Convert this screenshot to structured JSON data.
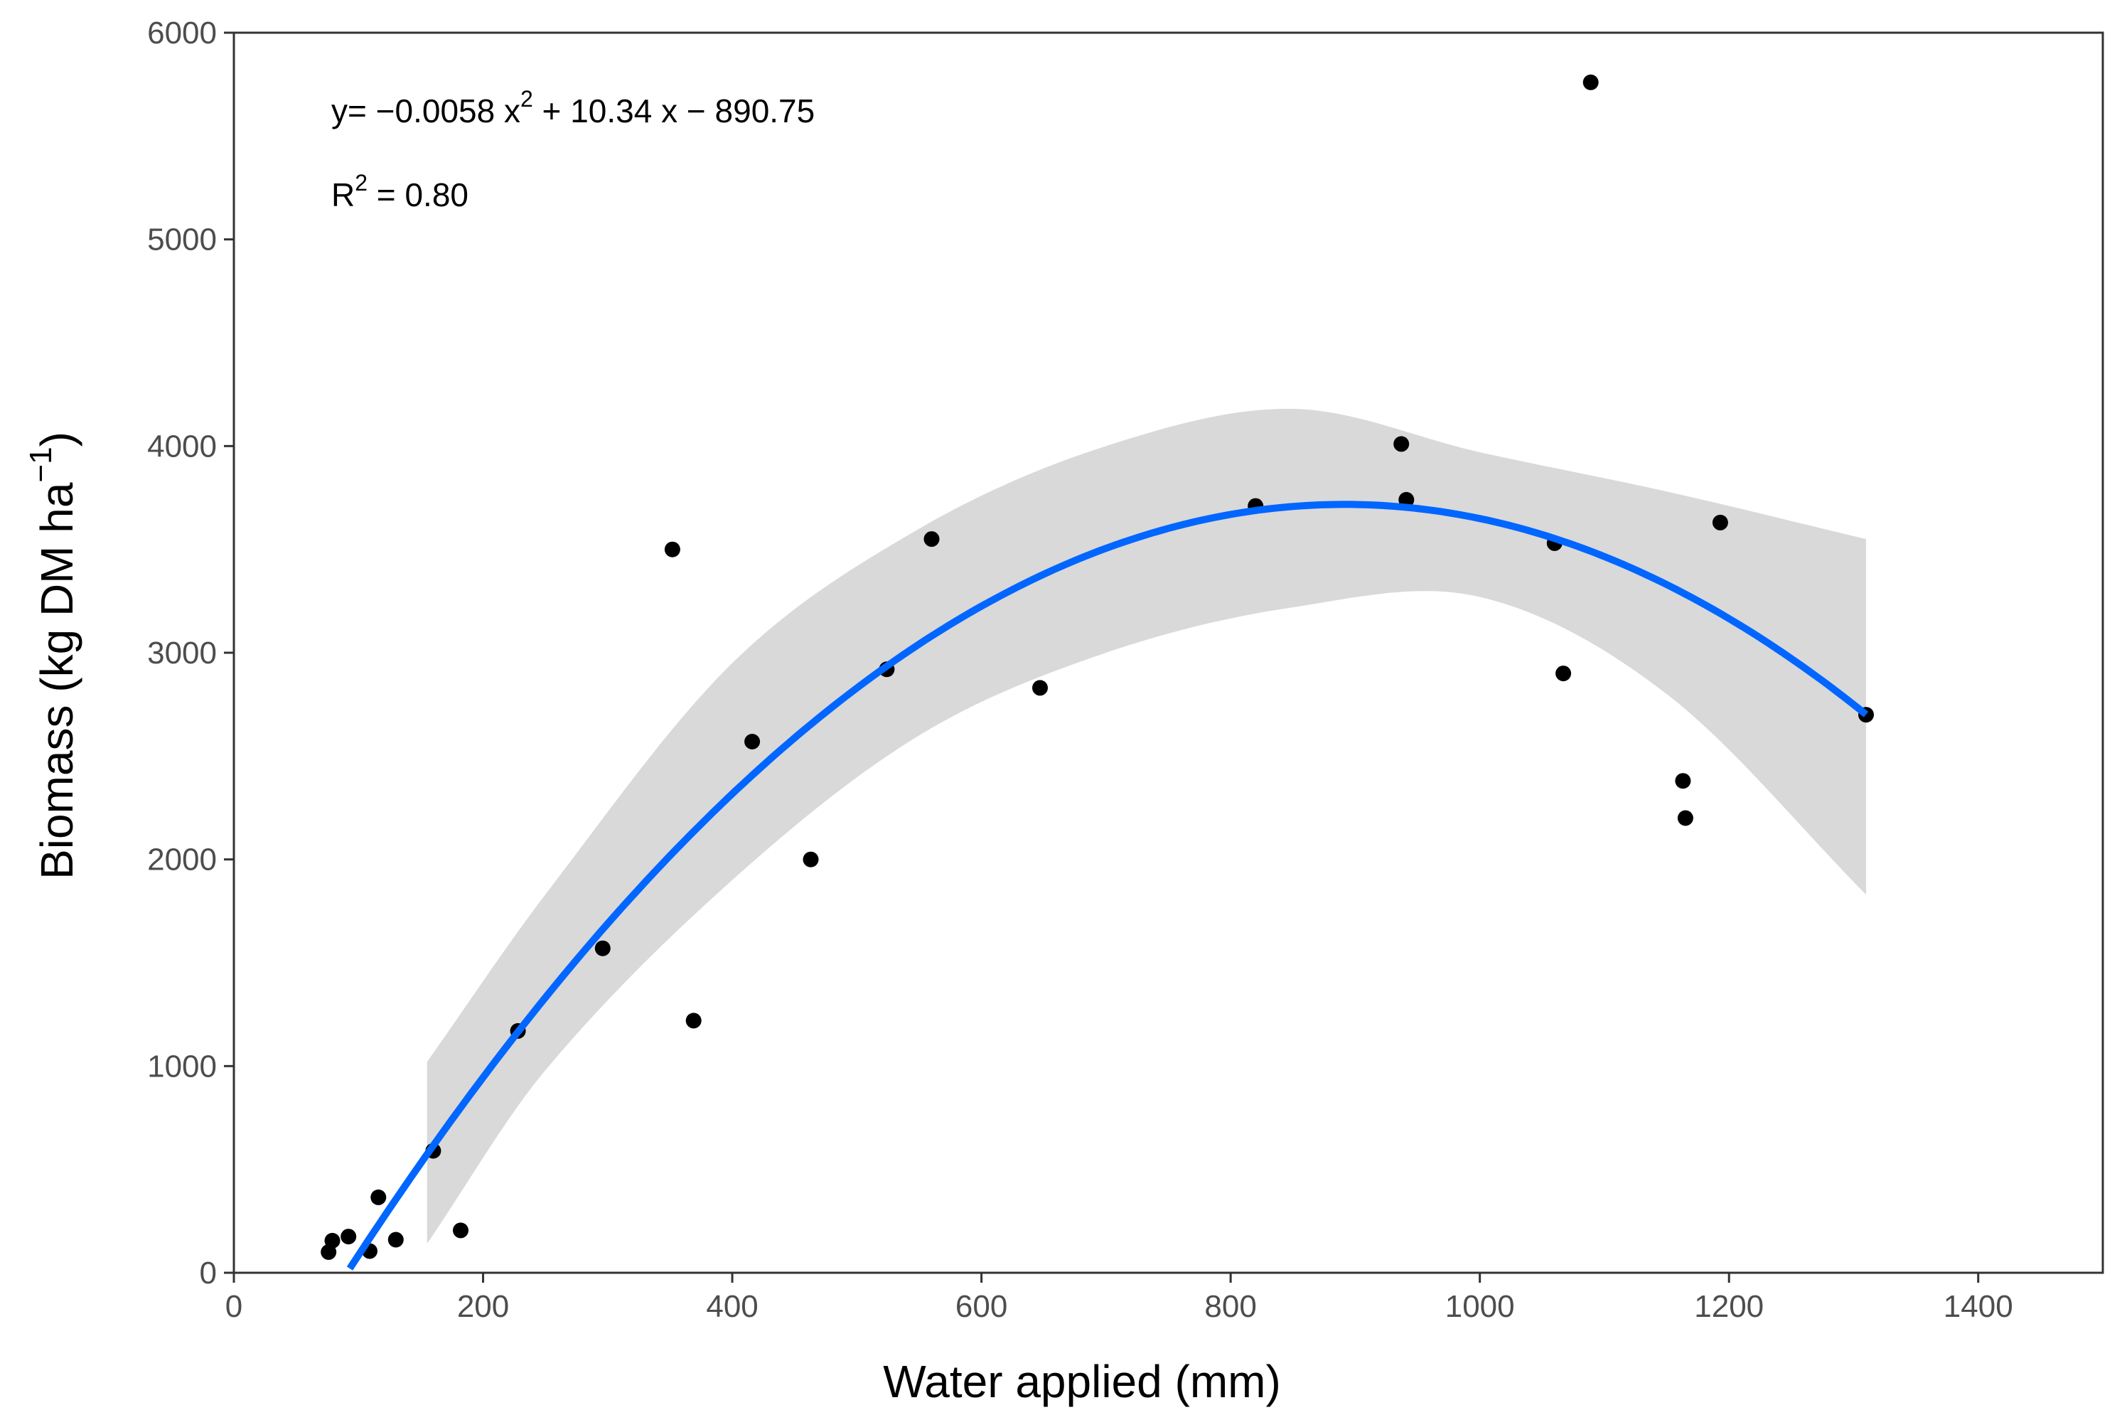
{
  "chart_data": {
    "type": "scatter",
    "xlabel": "Water applied (mm)",
    "ylabel": {
      "main": "Biomass (kg DM ha",
      "superscript": "−1",
      "close": ")"
    },
    "xlim": [
      0,
      1500
    ],
    "ylim": [
      0,
      6000
    ],
    "x_ticks": [
      0,
      200,
      400,
      600,
      800,
      1000,
      1200,
      1400
    ],
    "y_ticks": [
      0,
      1000,
      2000,
      3000,
      4000,
      5000,
      6000
    ],
    "grid": false,
    "points": [
      {
        "x": 76,
        "y": 100
      },
      {
        "x": 79,
        "y": 155
      },
      {
        "x": 92,
        "y": 175
      },
      {
        "x": 109,
        "y": 105
      },
      {
        "x": 116,
        "y": 365
      },
      {
        "x": 130,
        "y": 160
      },
      {
        "x": 160,
        "y": 590
      },
      {
        "x": 182,
        "y": 205
      },
      {
        "x": 228,
        "y": 1170
      },
      {
        "x": 296,
        "y": 1570
      },
      {
        "x": 352,
        "y": 3500
      },
      {
        "x": 369,
        "y": 1220
      },
      {
        "x": 416,
        "y": 2570
      },
      {
        "x": 463,
        "y": 2000
      },
      {
        "x": 524,
        "y": 2920
      },
      {
        "x": 560,
        "y": 3550
      },
      {
        "x": 647,
        "y": 2830
      },
      {
        "x": 820,
        "y": 3710
      },
      {
        "x": 937,
        "y": 4010
      },
      {
        "x": 941,
        "y": 3740
      },
      {
        "x": 1060,
        "y": 3530
      },
      {
        "x": 1067,
        "y": 2900
      },
      {
        "x": 1089,
        "y": 5760
      },
      {
        "x": 1163,
        "y": 2380
      },
      {
        "x": 1165,
        "y": 2200
      },
      {
        "x": 1193,
        "y": 3630
      },
      {
        "x": 1310,
        "y": 2700
      }
    ],
    "fit": {
      "type": "quadratic",
      "coefficients": {
        "a": -0.0058,
        "b": 10.34,
        "c": -890.75
      },
      "x_range": [
        93,
        1310
      ],
      "color": "#0066ff"
    },
    "confidence_band": {
      "color": "#d9d9d9",
      "x": [
        155,
        250,
        400,
        550,
        700,
        850,
        1000,
        1150,
        1310
      ],
      "upper": [
        1020,
        1830,
        2950,
        3600,
        4000,
        4180,
        3970,
        3780,
        3550
      ],
      "lower": [
        140,
        980,
        1900,
        2600,
        3000,
        3220,
        3270,
        2800,
        1830
      ]
    },
    "annotation": {
      "equation": {
        "prefix": "y= −0.0058 x",
        "exp": "2",
        "suffix": " + 10.34 x − 890.75"
      },
      "r2": {
        "label": "R",
        "exp": "2",
        "value": " = 0.80"
      }
    },
    "point_color": "#000000",
    "axis_color": "#333333"
  }
}
